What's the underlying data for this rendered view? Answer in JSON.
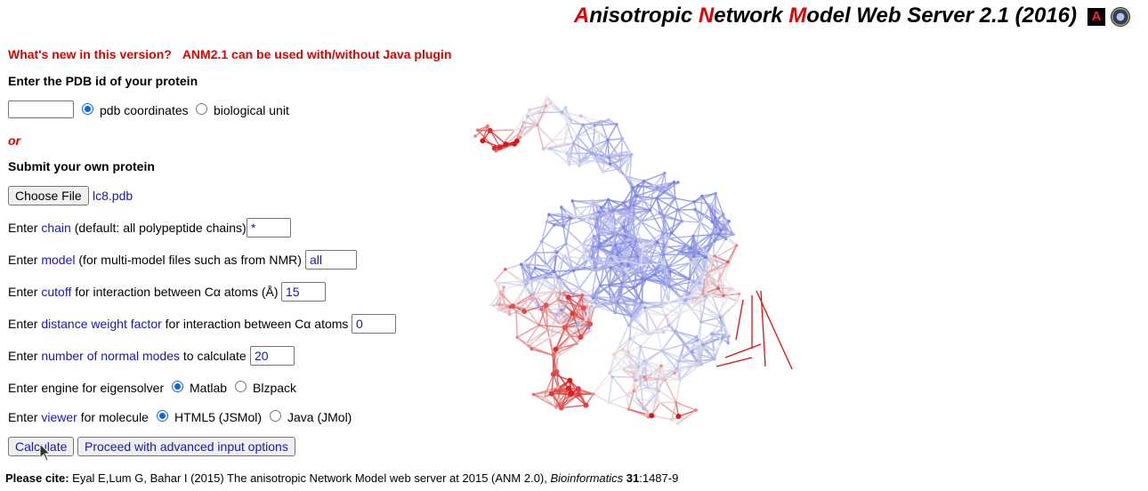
{
  "header": {
    "title_parts": [
      {
        "text": "A",
        "red": true
      },
      {
        "text": "nisotropic ",
        "red": false
      },
      {
        "text": "N",
        "red": true
      },
      {
        "text": "etwork ",
        "red": false
      },
      {
        "text": "M",
        "red": true
      },
      {
        "text": "odel Web Server 2.1 (2016)",
        "red": false
      }
    ],
    "logo_a": "A"
  },
  "whats_new": "What's new in this version?",
  "java_note": "ANM2.1 can be used with/without Java plugin",
  "pdb_section": {
    "heading": "Enter the PDB id of your protein",
    "pdb_id_value": "",
    "option_pdb": "pdb coordinates",
    "option_bio": "biological unit"
  },
  "or_label": "or",
  "upload": {
    "heading": "Submit your own protein",
    "choose_button": "Choose File",
    "filename": "lc8.pdb"
  },
  "params": {
    "chain": {
      "pre": "Enter ",
      "link": "chain",
      "post": " (default: all polypeptide chains)",
      "value": "*"
    },
    "model": {
      "pre": "Enter ",
      "link": "model",
      "post": " (for multi-model files such as from NMR)",
      "value": "all"
    },
    "cutoff": {
      "pre": "Enter ",
      "link": "cutoff",
      "post": " for interaction between Cα atoms (Å)",
      "value": "15"
    },
    "weight": {
      "pre": "Enter ",
      "link": "distance weight factor",
      "post": " for interaction between Cα atoms",
      "value": "0"
    },
    "modes": {
      "pre": "Enter ",
      "link": "number of normal modes",
      "post": " to calculate",
      "value": "20"
    }
  },
  "eigensolver": {
    "label": "Enter engine for eigensolver",
    "opt1": "Matlab",
    "opt2": "Blzpack"
  },
  "viewer": {
    "pre": "Enter ",
    "link": "viewer",
    "post": " for molecule",
    "opt1": "HTML5 (JSMol)",
    "opt2": "Java (JMol)"
  },
  "buttons": {
    "calculate": "Calculate",
    "advanced": "Proceed with advanced input options"
  },
  "citation": {
    "label": "Please cite:",
    "text": " Eyal E,Lum G, Bahar I (2015) The anisotropic Network Model web server at 2015 (ANM 2.0), ",
    "journal": "Bioinformatics",
    "volume": "31",
    "pages": ":1487-9"
  },
  "colors": {
    "accent_red": "#e00000",
    "link_blue": "#1a1aa6"
  }
}
